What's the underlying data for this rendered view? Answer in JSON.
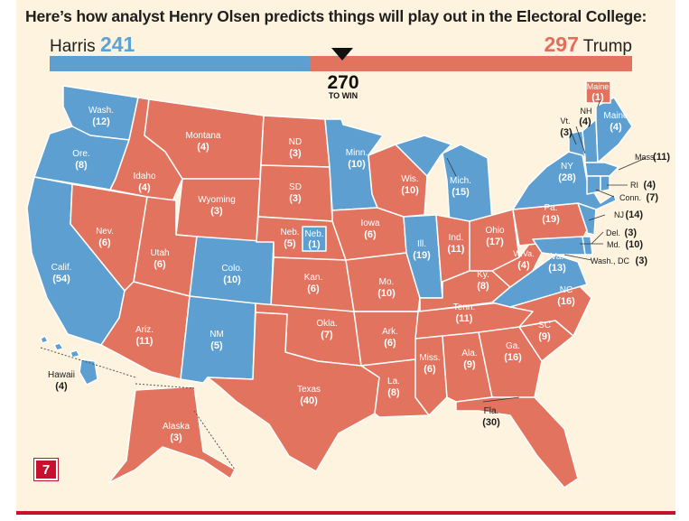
{
  "headline": "Here’s how analyst Henry Olsen predicts things will play out in the Electoral College:",
  "harris": {
    "name": "Harris",
    "votes": "241"
  },
  "trump": {
    "name": "Trump",
    "votes": "297"
  },
  "threshold": {
    "value": "270",
    "label": "TO WIN"
  },
  "colors": {
    "harris": "#5d9fd0",
    "trump": "#e2735e",
    "background": "#fdf3de"
  },
  "badge": "7",
  "states": {
    "wa": {
      "name": "Wash.",
      "ev": "(12)"
    },
    "or": {
      "name": "Ore.",
      "ev": "(8)"
    },
    "ca": {
      "name": "Calif.",
      "ev": "(54)"
    },
    "nv": {
      "name": "Nev.",
      "ev": "(6)"
    },
    "id": {
      "name": "Idaho",
      "ev": "(4)"
    },
    "mt": {
      "name": "Montana",
      "ev": "(4)"
    },
    "wy": {
      "name": "Wyoming",
      "ev": "(3)"
    },
    "ut": {
      "name": "Utah",
      "ev": "(6)"
    },
    "az": {
      "name": "Ariz.",
      "ev": "(11)"
    },
    "co": {
      "name": "Colo.",
      "ev": "(10)"
    },
    "nm": {
      "name": "NM",
      "ev": "(5)"
    },
    "nd": {
      "name": "ND",
      "ev": "(3)"
    },
    "sd": {
      "name": "SD",
      "ev": "(3)"
    },
    "ne": {
      "name": "Neb.",
      "ev": "(5)"
    },
    "ne2": {
      "name": "Neb.",
      "ev": "(1)"
    },
    "ks": {
      "name": "Kan.",
      "ev": "(6)"
    },
    "ok": {
      "name": "Okla.",
      "ev": "(7)"
    },
    "tx": {
      "name": "Texas",
      "ev": "(40)"
    },
    "mn": {
      "name": "Minn.",
      "ev": "(10)"
    },
    "ia": {
      "name": "Iowa",
      "ev": "(6)"
    },
    "mo": {
      "name": "Mo.",
      "ev": "(10)"
    },
    "ar": {
      "name": "Ark.",
      "ev": "(6)"
    },
    "la": {
      "name": "La.",
      "ev": "(8)"
    },
    "wi": {
      "name": "Wis.",
      "ev": "(10)"
    },
    "il": {
      "name": "Ill.",
      "ev": "(19)"
    },
    "mi": {
      "name": "Mich.",
      "ev": "(15)"
    },
    "in": {
      "name": "Ind.",
      "ev": "(11)"
    },
    "oh": {
      "name": "Ohio",
      "ev": "(17)"
    },
    "ky": {
      "name": "Ky.",
      "ev": "(8)"
    },
    "tn": {
      "name": "Tenn.",
      "ev": "(11)"
    },
    "ms": {
      "name": "Miss.",
      "ev": "(6)"
    },
    "al": {
      "name": "Ala.",
      "ev": "(9)"
    },
    "ga": {
      "name": "Ga.",
      "ev": "(16)"
    },
    "fl": {
      "name": "Fla.",
      "ev": "(30)"
    },
    "sc": {
      "name": "SC",
      "ev": "(9)"
    },
    "nc": {
      "name": "NC",
      "ev": "(16)"
    },
    "va": {
      "name": "Va.",
      "ev": "(13)"
    },
    "wv": {
      "name": "W.Va.",
      "ev": "(4)"
    },
    "pa": {
      "name": "Pa.",
      "ev": "(19)"
    },
    "ny": {
      "name": "NY",
      "ev": "(28)"
    },
    "vt": {
      "name": "Vt.",
      "ev": "(3)"
    },
    "nh": {
      "name": "NH",
      "ev": "(4)"
    },
    "me": {
      "name": "Maine",
      "ev": "(4)"
    },
    "me2": {
      "name": "Maine",
      "ev": "(1)"
    },
    "ma": {
      "name": "Mass.",
      "ev": "(11)"
    },
    "ri": {
      "name": "RI",
      "ev": "(4)"
    },
    "ct": {
      "name": "Conn.",
      "ev": "(7)"
    },
    "nj": {
      "name": "NJ",
      "ev": "(14)"
    },
    "de": {
      "name": "Del.",
      "ev": "(3)"
    },
    "md": {
      "name": "Md.",
      "ev": "(10)"
    },
    "dc": {
      "name": "Wash., DC",
      "ev": "(3)"
    },
    "ak": {
      "name": "Alaska",
      "ev": "(3)"
    },
    "hi": {
      "name": "Hawaii",
      "ev": "(4)"
    }
  }
}
